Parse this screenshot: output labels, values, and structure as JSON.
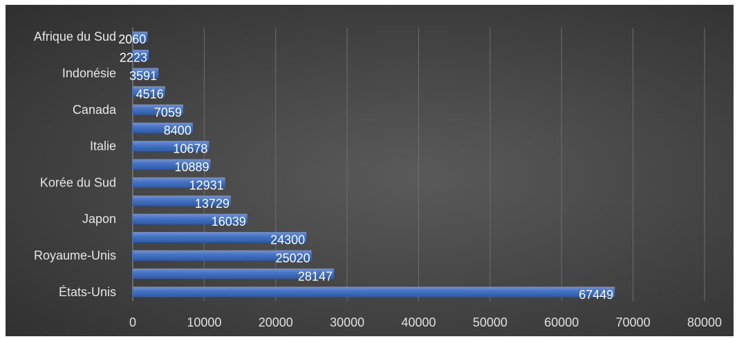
{
  "chart_data": {
    "type": "bar",
    "orientation": "horizontal",
    "categories": [
      "États-Unis",
      "",
      "Royaume-Unis",
      "",
      "Japon",
      "",
      "Korée du Sud",
      "",
      "Italie",
      "",
      "Canada",
      "",
      "Indonésie",
      "",
      "Afrique du Sud"
    ],
    "values": [
      67449,
      28147,
      25020,
      24300,
      16039,
      13729,
      12931,
      10889,
      10678,
      8400,
      7059,
      4516,
      3591,
      2223,
      2060
    ],
    "xlim": [
      0,
      80000
    ],
    "xticks": [
      "0",
      "10000",
      "20000",
      "30000",
      "40000",
      "50000",
      "60000",
      "70000",
      "80000"
    ],
    "grid": true,
    "legend": "none",
    "bar_color": "#4472c4",
    "background_color": "#404040"
  }
}
